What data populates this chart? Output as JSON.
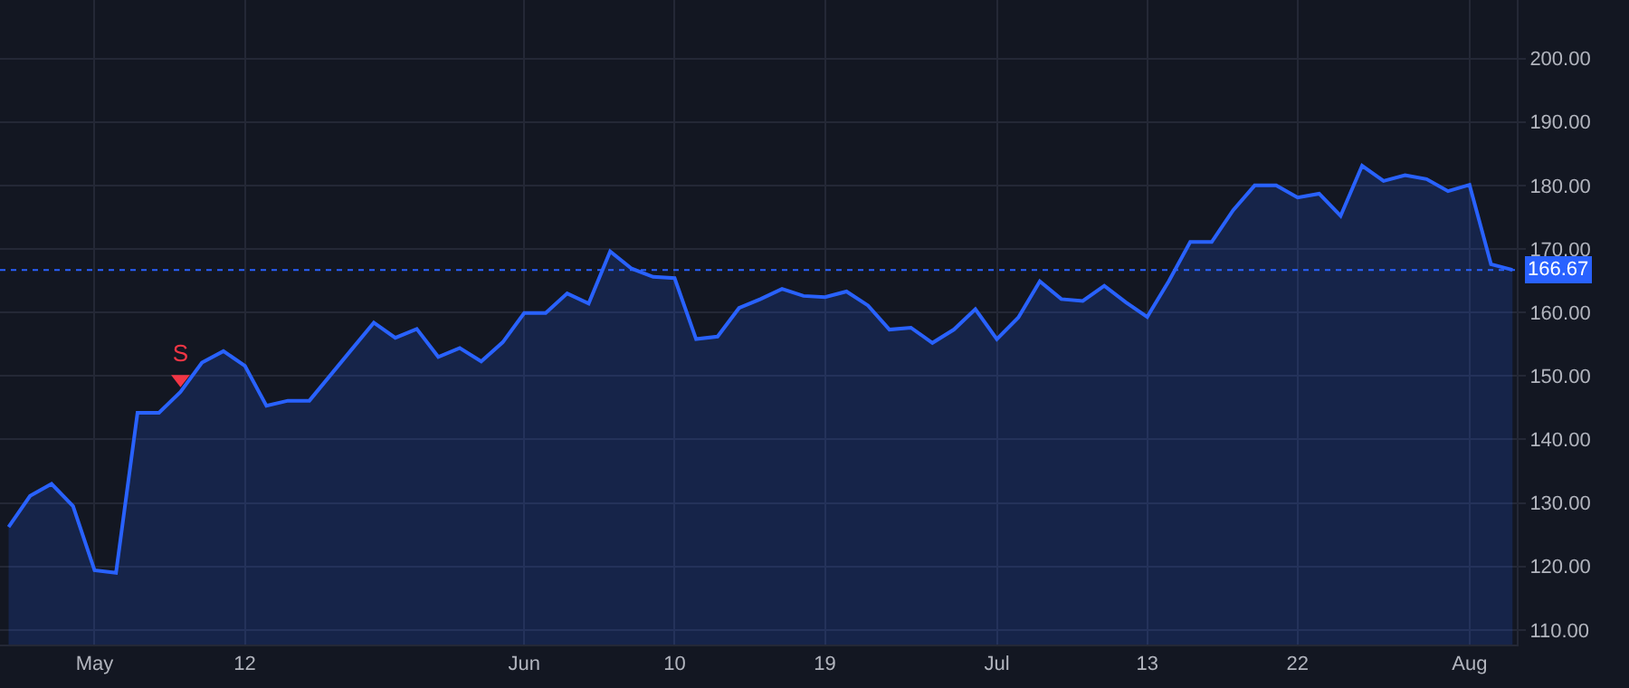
{
  "chart_data": {
    "type": "area",
    "categories": [
      null,
      null,
      null,
      null,
      "May",
      null,
      null,
      null,
      null,
      null,
      null,
      "12",
      null,
      null,
      null,
      null,
      null,
      null,
      null,
      null,
      null,
      null,
      null,
      null,
      "Jun",
      null,
      null,
      null,
      null,
      null,
      null,
      "10",
      null,
      null,
      null,
      null,
      null,
      null,
      "19",
      null,
      null,
      null,
      null,
      null,
      null,
      null,
      "Jul",
      null,
      null,
      null,
      null,
      null,
      null,
      "13",
      null,
      null,
      null,
      null,
      null,
      null,
      "22",
      null,
      null,
      null,
      null,
      null,
      null,
      null,
      "Aug",
      null,
      null
    ],
    "series": [
      {
        "color": "#2962ff",
        "values": [
          126.2,
          131.1,
          133.0,
          129.5,
          119.4,
          119.0,
          144.2,
          144.2,
          147.5,
          152.1,
          153.9,
          151.6,
          145.3,
          146.1,
          146.1,
          150.2,
          154.3,
          158.4,
          156.0,
          157.4,
          153.0,
          154.4,
          152.3,
          155.3,
          159.9,
          159.9,
          163.0,
          161.4,
          169.6,
          166.9,
          165.6,
          165.4,
          155.8,
          156.2,
          160.7,
          162.1,
          163.7,
          162.6,
          162.4,
          163.3,
          161.1,
          157.3,
          157.6,
          155.2,
          157.3,
          160.5,
          155.8,
          159.2,
          164.9,
          162.1,
          161.8,
          164.2,
          161.6,
          159.3,
          164.9,
          171.1,
          171.1,
          176.1,
          180.0,
          180.0,
          178.1,
          178.7,
          175.2,
          183.1,
          180.7,
          181.6,
          181.0,
          179.1,
          180.1,
          167.6,
          166.7
        ]
      },
      {
        "type": "scatter",
        "color": "#f23645",
        "marker": "triangle",
        "values": [
          null,
          null,
          null,
          null,
          null,
          null,
          null,
          null,
          149.5,
          null,
          null,
          null,
          null,
          null,
          null,
          null,
          null,
          null,
          null,
          null,
          null,
          null,
          null,
          null,
          null,
          null,
          null,
          null,
          null,
          null,
          null,
          null,
          null,
          null,
          null,
          null,
          null,
          null,
          null,
          null,
          null,
          null,
          null,
          null,
          null,
          null,
          null,
          null,
          null,
          null,
          null,
          null,
          null,
          null,
          null,
          null,
          null,
          null,
          null,
          null,
          null,
          null,
          null,
          null,
          null,
          null,
          null,
          null,
          null,
          null,
          null
        ],
        "value_labels": [
          null,
          null,
          null,
          null,
          null,
          null,
          null,
          null,
          "S",
          null,
          null,
          null,
          null,
          null,
          null,
          null,
          null,
          null,
          null,
          null,
          null,
          null,
          null,
          null,
          null,
          null,
          null,
          null,
          null,
          null,
          null,
          null,
          null,
          null,
          null,
          null,
          null,
          null,
          null,
          null,
          null,
          null,
          null,
          null,
          null,
          null,
          null,
          null,
          null,
          null,
          null,
          null,
          null,
          null,
          null,
          null,
          null,
          null,
          null,
          null,
          null,
          null,
          null,
          null,
          null,
          null,
          null,
          null,
          null,
          null,
          null
        ]
      }
    ],
    "ylim": [
      107.7,
      209.2
    ],
    "yticks": [
      {
        "value": 110,
        "label": "110.00"
      },
      {
        "value": 120,
        "label": "120.00"
      },
      {
        "value": 130,
        "label": "130.00"
      },
      {
        "value": 140,
        "label": "140.00"
      },
      {
        "value": 150,
        "label": "150.00"
      },
      {
        "value": 160,
        "label": "160.00"
      },
      {
        "value": 170,
        "label": "170.00"
      },
      {
        "value": 180,
        "label": "180.00"
      },
      {
        "value": 190,
        "label": "190.00"
      },
      {
        "value": 200,
        "label": "200.00"
      }
    ],
    "ref_lines": [
      {
        "axis": "y",
        "value": 166.67,
        "label": "166.67",
        "color": "#2962ff",
        "line_style": "dotted"
      }
    ],
    "grid": true,
    "marker": "none",
    "line_style": "solid"
  }
}
